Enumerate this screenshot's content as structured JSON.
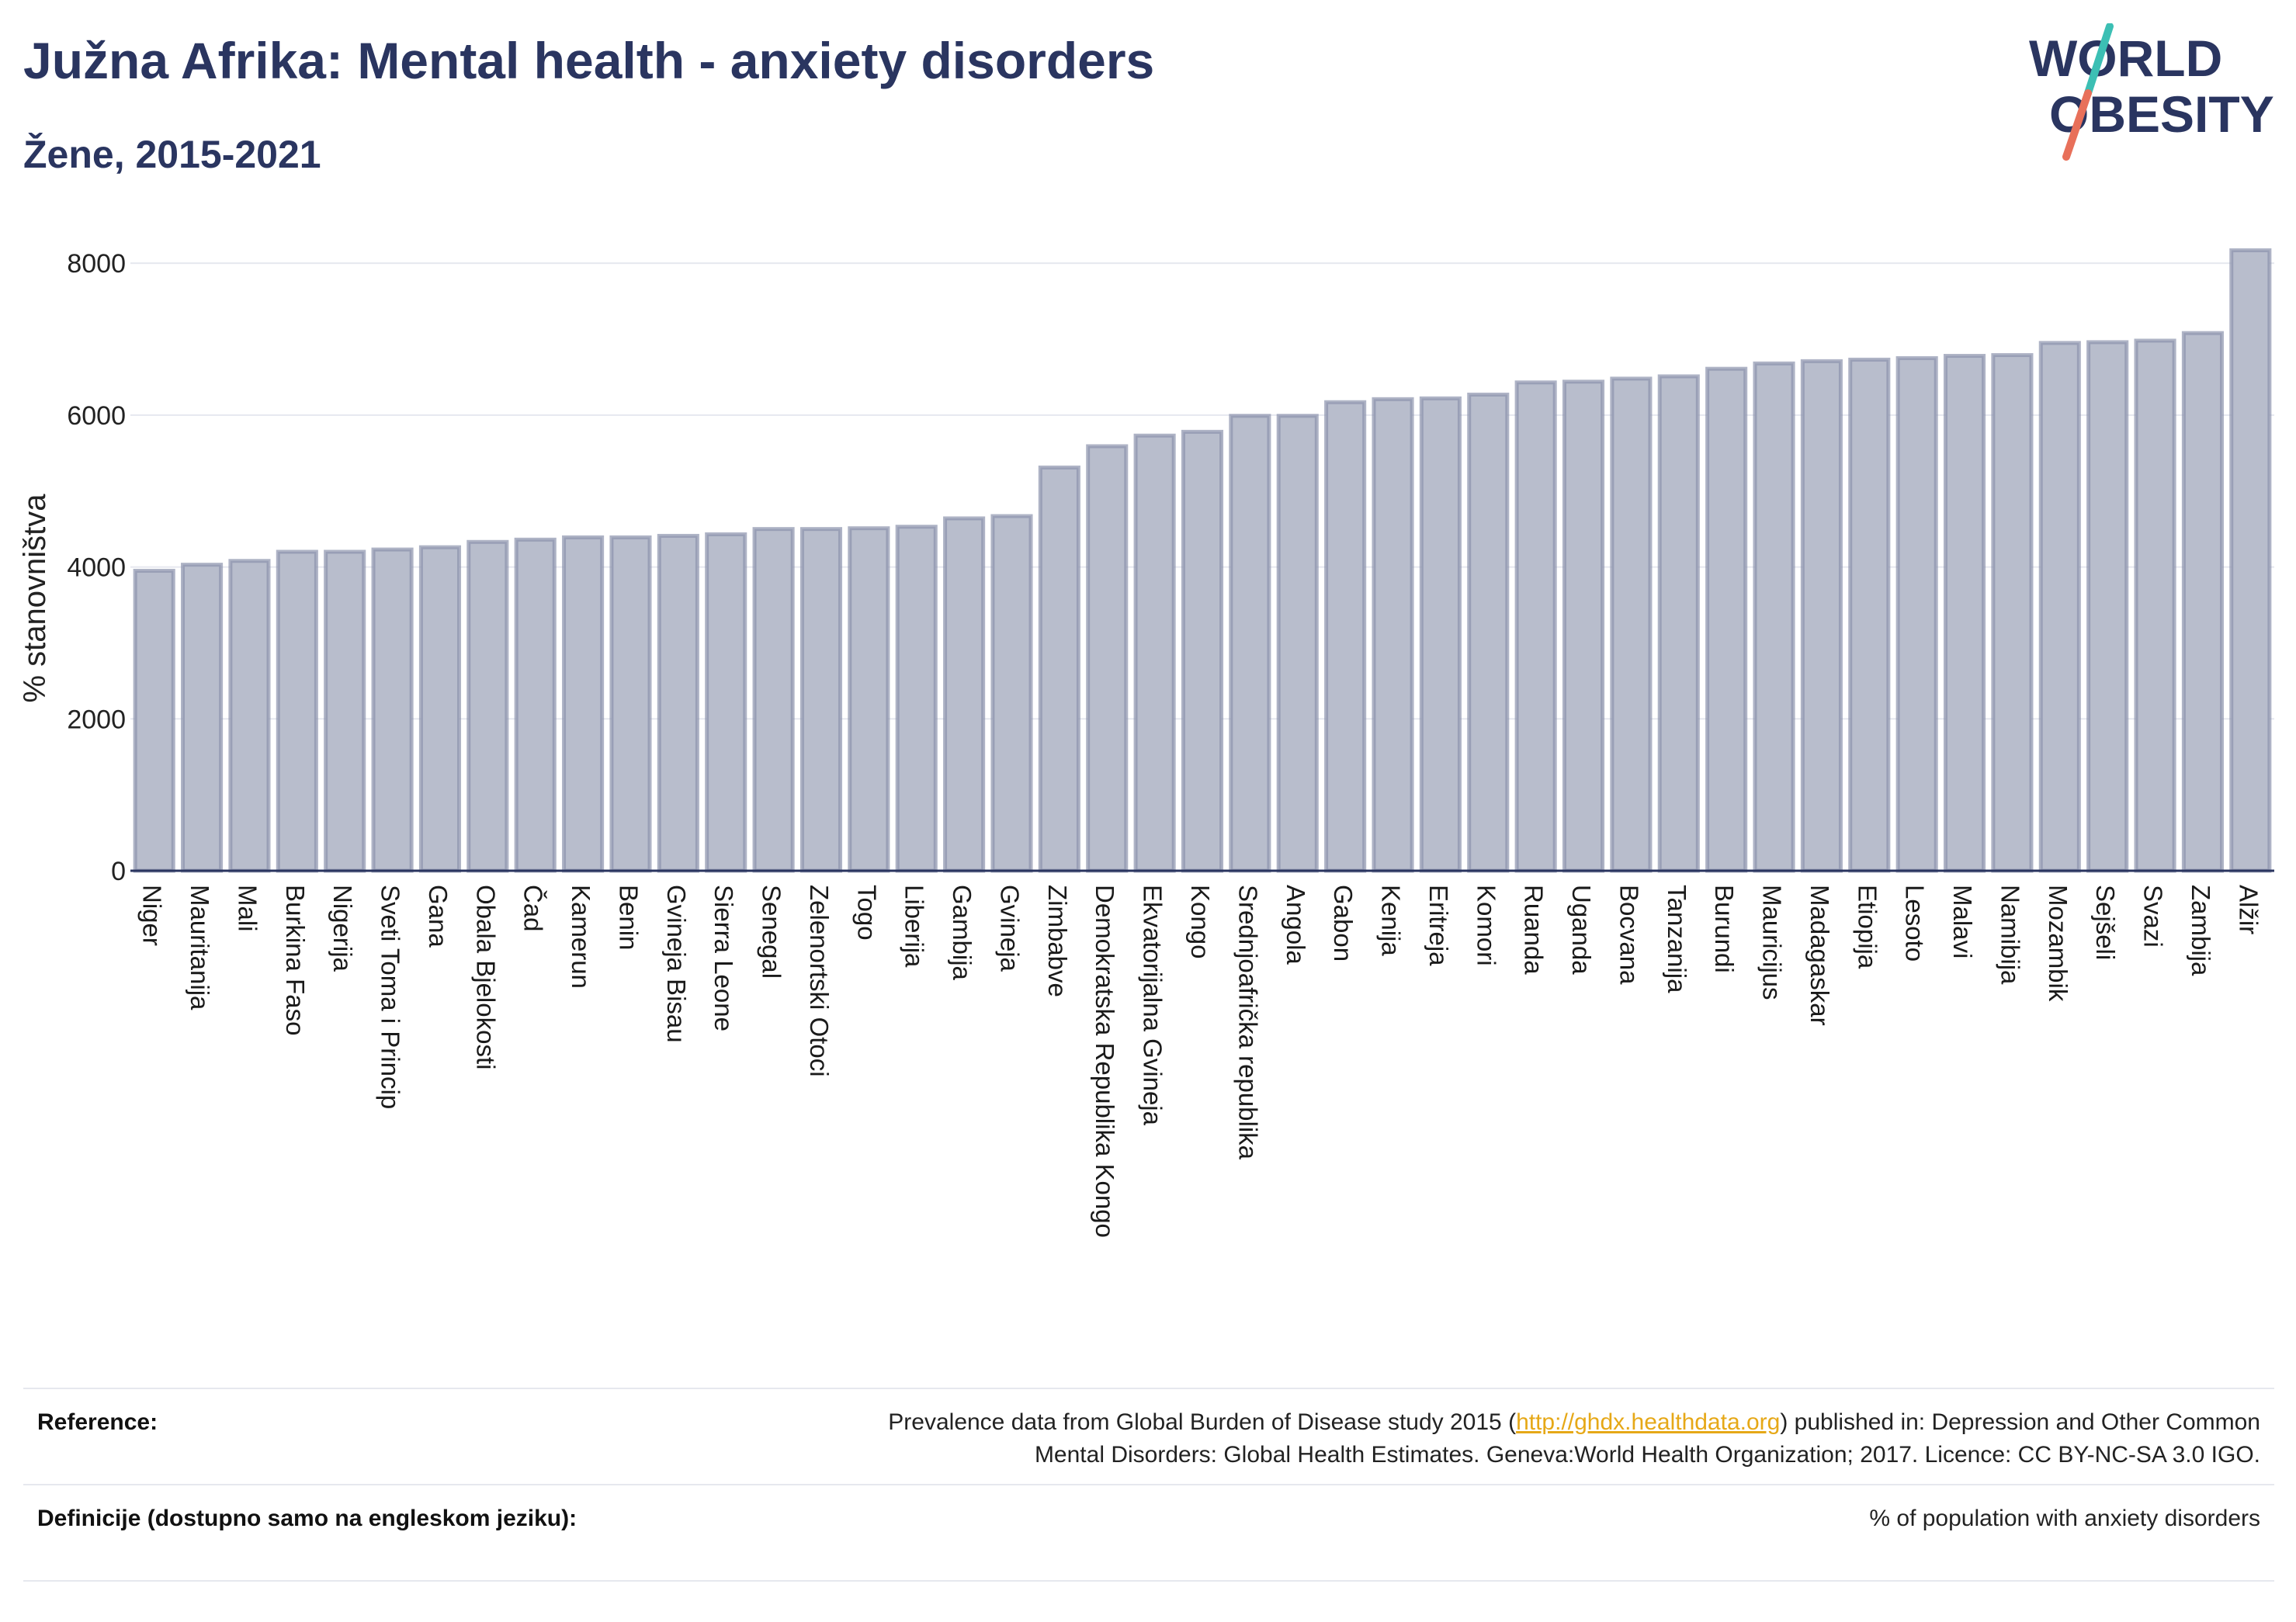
{
  "header": {
    "title": "Južna Afrika: Mental health - anxiety disorders",
    "subtitle": "Žene, 2015-2021"
  },
  "logo": {
    "line1": "WORLD",
    "line2": "OBESITY",
    "colors": {
      "text": "#2a3560",
      "slash_top": "#3cbfb4",
      "slash_bottom": "#e8705a"
    }
  },
  "chart_data": {
    "type": "bar",
    "ylabel": "% stanovništva",
    "ylim": [
      0,
      8400
    ],
    "yticks": [
      0,
      2000,
      4000,
      6000,
      8000
    ],
    "grid": true,
    "bar_color": "#b8bdcc",
    "bar_edge_color": "#8c93ad",
    "categories": [
      "Niger",
      "Mauritanija",
      "Mali",
      "Burkina Faso",
      "Nigerija",
      "Sveti Toma i Princip",
      "Gana",
      "Obala Bjelokosti",
      "Čad",
      "Kamerun",
      "Benin",
      "Gvineja Bisau",
      "Sierra Leone",
      "Senegal",
      "Zelenortski Otoci",
      "Togo",
      "Liberija",
      "Gambija",
      "Gvineja",
      "Zimbabve",
      "Demokratska Republika Kongo",
      "Ekvatorijalna Gvineja",
      "Kongo",
      "Srednjoafrička republika",
      "Angola",
      "Gabon",
      "Kenija",
      "Eritreja",
      "Komori",
      "Ruanda",
      "Uganda",
      "Bocvana",
      "Tanzanija",
      "Burundi",
      "Mauricijus",
      "Madagaskar",
      "Etiopija",
      "Lesoto",
      "Malavi",
      "Namibija",
      "Mozambik",
      "Sejšeli",
      "Svazi",
      "Zambija",
      "Alžir"
    ],
    "values": [
      3950,
      4030,
      4080,
      4200,
      4200,
      4230,
      4260,
      4330,
      4360,
      4390,
      4390,
      4410,
      4430,
      4500,
      4500,
      4510,
      4530,
      4640,
      4670,
      5310,
      5590,
      5730,
      5780,
      5990,
      5990,
      6170,
      6210,
      6220,
      6270,
      6430,
      6440,
      6480,
      6510,
      6610,
      6680,
      6710,
      6730,
      6750,
      6780,
      6790,
      6950,
      6960,
      6980,
      7080,
      8170
    ]
  },
  "footer": {
    "reference_label": "Reference:",
    "reference_text_pre": "Prevalence data from Global Burden of Disease study 2015 (",
    "reference_link": "http://ghdx.healthdata.org",
    "reference_text_post": ") published in: Depression and Other Common",
    "reference_text_line2": "Mental Disorders: Global Health Estimates. Geneva:World Health Organization; 2017. Licence: CC BY-NC-SA 3.0 IGO.",
    "definition_label": "Definicije (dostupno samo na engleskom jeziku):",
    "definition_text": "% of population with anxiety disorders"
  }
}
